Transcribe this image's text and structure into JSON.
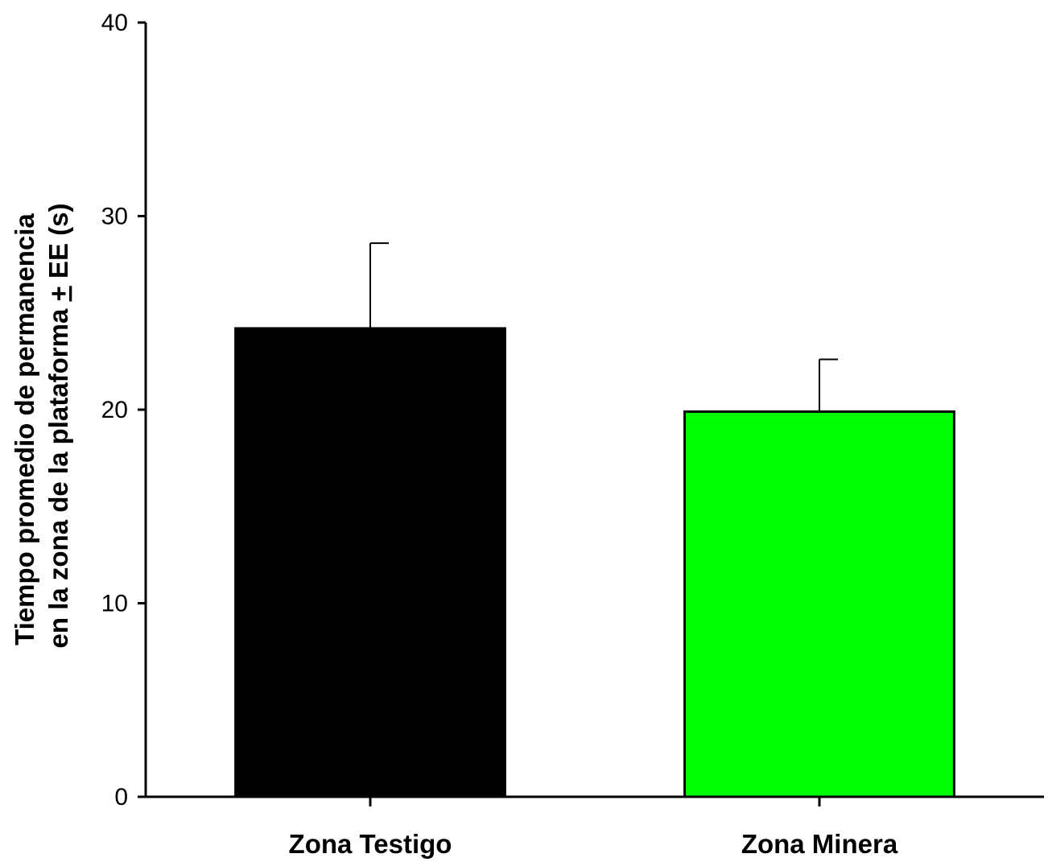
{
  "chart_data": {
    "type": "bar",
    "categories": [
      "Zona Testigo",
      "Zona Minera"
    ],
    "values": [
      24.2,
      19.9
    ],
    "errors": [
      4.4,
      2.7
    ],
    "colors": [
      "#000000",
      "#00ff00"
    ],
    "ylim": [
      0,
      40
    ],
    "yticks": [
      0,
      10,
      20,
      30,
      40
    ],
    "ylabel_line1": "Tiempo promedio de permanencia",
    "ylabel_line2_prefix": "en la zona de la plataforma ",
    "ylabel_line2_pm": "+",
    "ylabel_line2_suffix": " EE (s)",
    "grid": false,
    "legend": false
  }
}
